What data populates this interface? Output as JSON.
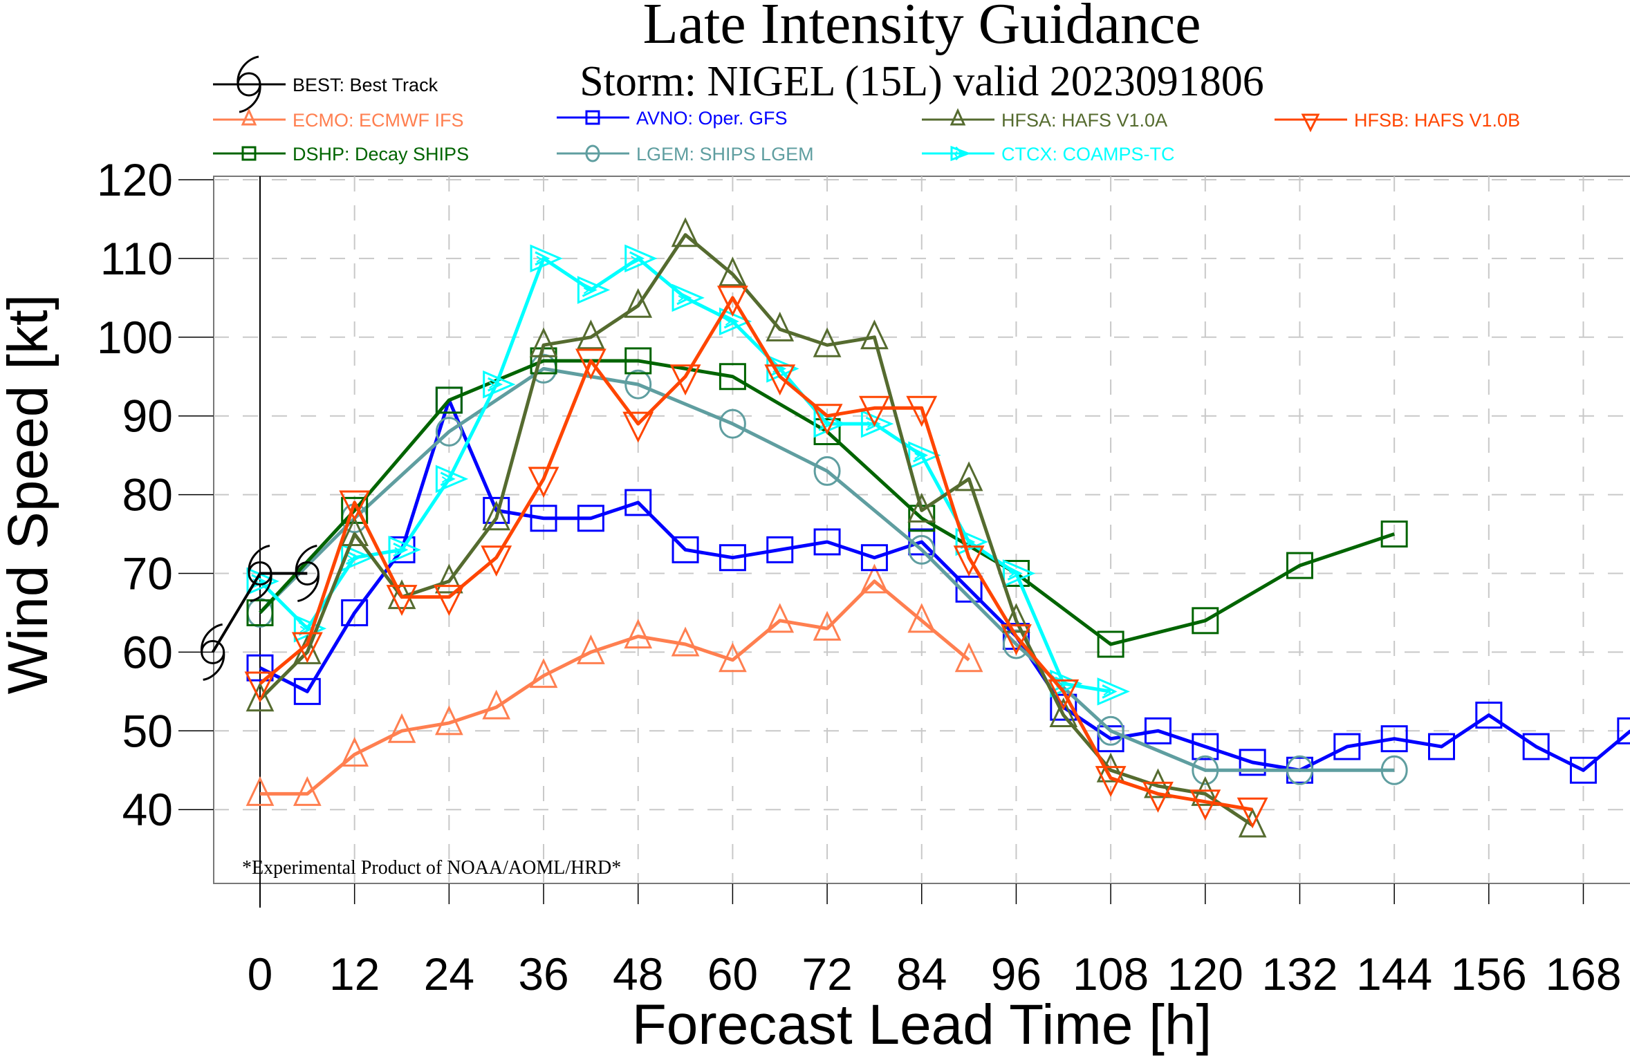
{
  "chart_data": {
    "type": "line",
    "title": "Late Intensity Guidance",
    "subtitle": "Storm: NIGEL (15L) valid 2023091806",
    "xlabel": "Forecast Lead Time [h]",
    "ylabel": "Wind Speed [kt]",
    "xlim": [
      -7,
      175
    ],
    "ylim": [
      30,
      120
    ],
    "xticks": [
      0,
      12,
      24,
      36,
      48,
      60,
      72,
      84,
      96,
      108,
      120,
      132,
      144,
      156,
      168
    ],
    "yticks": [
      40,
      50,
      60,
      70,
      80,
      90,
      100,
      110,
      120
    ],
    "grid": true,
    "legend_position": "top",
    "footnote": "*Experimental Product of NOAA/AOML/HRD*",
    "vertical_marker_at": 0,
    "series": [
      {
        "id": "BEST",
        "name": "BEST: Best Track",
        "color": "#000000",
        "marker": "hurricane",
        "x": [
          -6,
          0,
          6
        ],
        "y": [
          60,
          70,
          70
        ]
      },
      {
        "id": "ECMO",
        "name": "ECMO: ECMWF IFS",
        "color": "#ff7f50",
        "marker": "triangle-up",
        "x": [
          0,
          6,
          12,
          18,
          24,
          30,
          36,
          42,
          48,
          54,
          60,
          66,
          72,
          78,
          84,
          90
        ],
        "y": [
          42,
          42,
          47,
          50,
          51,
          53,
          57,
          60,
          62,
          61,
          59,
          64,
          63,
          69,
          64,
          59
        ]
      },
      {
        "id": "AVNO",
        "name": "AVNO: Oper. GFS",
        "color": "#0000ff",
        "marker": "square",
        "x": [
          0,
          6,
          12,
          18,
          24,
          30,
          36,
          42,
          48,
          54,
          60,
          66,
          72,
          78,
          84,
          90,
          96,
          102,
          108,
          114,
          120,
          126,
          132,
          138,
          144,
          150,
          156,
          162,
          168,
          174
        ],
        "y": [
          58,
          55,
          65,
          73,
          92,
          78,
          77,
          77,
          79,
          73,
          72,
          73,
          74,
          72,
          74,
          68,
          62,
          53,
          49,
          50,
          48,
          46,
          45,
          48,
          49,
          48,
          52,
          48,
          45,
          50
        ]
      },
      {
        "id": "HFSA",
        "name": "HFSA: HAFS V1.0A",
        "color": "#556b2f",
        "marker": "triangle-up",
        "x": [
          0,
          6,
          12,
          18,
          24,
          30,
          36,
          42,
          48,
          54,
          60,
          66,
          72,
          78,
          84,
          90,
          96,
          102,
          108,
          114,
          120,
          126
        ],
        "y": [
          54,
          60,
          75,
          67,
          69,
          77,
          99,
          100,
          104,
          113,
          108,
          101,
          99,
          100,
          78,
          82,
          64,
          52,
          45,
          43,
          42,
          38
        ]
      },
      {
        "id": "HFSB",
        "name": "HFSB: HAFS V1.0B",
        "color": "#ff4500",
        "marker": "triangle-down",
        "x": [
          0,
          6,
          12,
          18,
          24,
          30,
          36,
          42,
          48,
          54,
          60,
          66,
          72,
          78,
          84,
          90,
          96,
          102,
          108,
          114,
          120,
          126
        ],
        "y": [
          56,
          61,
          79,
          67,
          67,
          72,
          82,
          97,
          89,
          95,
          105,
          95,
          90,
          91,
          91,
          72,
          62,
          55,
          44,
          42,
          41,
          40
        ]
      },
      {
        "id": "DSHP",
        "name": "DSHP: Decay SHIPS",
        "color": "#006400",
        "marker": "square",
        "x": [
          0,
          12,
          24,
          36,
          48,
          60,
          72,
          84,
          96,
          108,
          120,
          132,
          144
        ],
        "y": [
          65,
          78,
          92,
          97,
          97,
          95,
          88,
          77,
          70,
          61,
          64,
          71,
          75
        ]
      },
      {
        "id": "LGEM",
        "name": "LGEM: SHIPS LGEM",
        "color": "#5f9ea0",
        "marker": "circle",
        "x": [
          0,
          12,
          24,
          36,
          48,
          60,
          72,
          84,
          96,
          108,
          120,
          132,
          144
        ],
        "y": [
          65,
          77,
          88,
          96,
          94,
          89,
          83,
          73,
          61,
          50,
          45,
          45,
          45
        ]
      },
      {
        "id": "CTCX",
        "name": "CTCX: COAMPS-TC",
        "color": "#00ffff",
        "marker": "arrow-right",
        "x": [
          0,
          6,
          12,
          18,
          24,
          30,
          36,
          42,
          48,
          54,
          60,
          66,
          72,
          78,
          84,
          90,
          96,
          102,
          108
        ],
        "y": [
          69,
          63,
          72,
          73,
          82,
          94,
          110,
          106,
          110,
          105,
          102,
          96,
          89,
          89,
          85,
          74,
          70,
          56,
          55
        ]
      }
    ]
  },
  "legend_order": [
    "BEST",
    "ECMO",
    "AVNO",
    "HFSA",
    "HFSB",
    "DSHP",
    "LGEM",
    "CTCX"
  ]
}
